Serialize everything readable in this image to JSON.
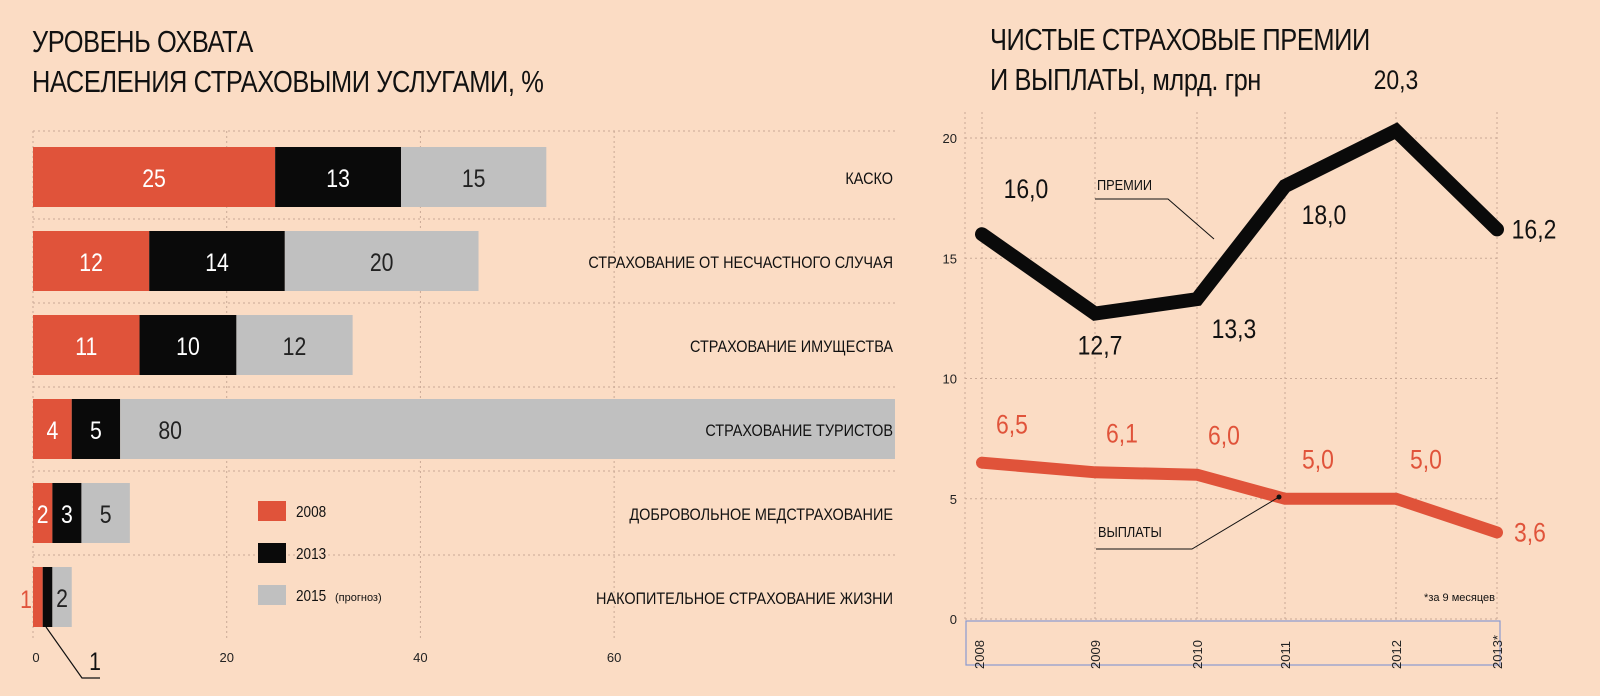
{
  "left": {
    "title_line1": "УРОВЕНЬ ОХВАТА",
    "title_line2": "НАСЕЛЕНИЯ СТРАХОВЫМИ УСЛУГАМИ, %",
    "legend": [
      "2008",
      "2013",
      "2015"
    ],
    "legend_note": "(прогноз)",
    "annotation": "1"
  },
  "right": {
    "title_line1": "ЧИСТЫЕ СТРАХОВЫЕ ПРЕМИИ",
    "title_line2": "И ВЫПЛАТЫ, млрд. грн",
    "label_premii": "ПРЕМИИ",
    "label_vyplaty": "ВЫПЛАТЫ",
    "footnote": "*за 9 месяцев"
  },
  "colors": {
    "c2008": "#e0533a",
    "c2013": "#0a0a0a",
    "c2015": "#c0c0c0",
    "bg": "#fbdcc4",
    "axisBox": "#8a9ad0"
  },
  "chart_data": [
    {
      "type": "bar",
      "stacked": true,
      "orientation": "horizontal",
      "title": "УРОВЕНЬ ОХВАТА НАСЕЛЕНИЯ СТРАХОВЫМИ УСЛУГАМИ, %",
      "categories": [
        "КАСКО",
        "СТРАХОВАНИЕ ОТ НЕСЧАСТНОГО СЛУЧАЯ",
        "СТРАХОВАНИЕ ИМУЩЕСТВА",
        "СТРАХОВАНИЕ ТУРИСТОВ",
        "ДОБРОВОЛЬНОЕ МЕДСТРАХОВАНИЕ",
        "НАКОПИТЕЛЬНОЕ СТРАХОВАНИЕ ЖИЗНИ"
      ],
      "series": [
        {
          "name": "2008",
          "values": [
            25,
            12,
            11,
            4,
            2,
            1
          ]
        },
        {
          "name": "2013",
          "values": [
            13,
            14,
            10,
            5,
            3,
            1
          ]
        },
        {
          "name": "2015",
          "values": [
            15,
            20,
            12,
            80,
            5,
            2
          ]
        }
      ],
      "xticks": [
        "0",
        "20",
        "40",
        "60"
      ],
      "xlim": [
        0,
        89
      ]
    },
    {
      "type": "line",
      "title": "ЧИСТЫЕ СТРАХОВЫЕ ПРЕМИИ И ВЫПЛАТЫ, млрд. грн",
      "x": [
        "2008",
        "2009",
        "2010",
        "2011",
        "2012",
        "2013*"
      ],
      "series": [
        {
          "name": "ПРЕМИИ",
          "values": [
            16.0,
            12.7,
            13.3,
            18.0,
            20.3,
            16.2
          ],
          "labels": [
            "16,0",
            "12,7",
            "13,3",
            "18,0",
            "20,3",
            "16,2"
          ]
        },
        {
          "name": "ВЫПЛАТЫ",
          "values": [
            6.5,
            6.1,
            6.0,
            5.0,
            5.0,
            3.6
          ],
          "labels": [
            "6,5",
            "6,1",
            "6,0",
            "5,0",
            "5,0",
            "3,6"
          ]
        }
      ],
      "yticks": [
        "0",
        "5",
        "10",
        "15",
        "20"
      ],
      "ylim": [
        0,
        21
      ]
    }
  ]
}
